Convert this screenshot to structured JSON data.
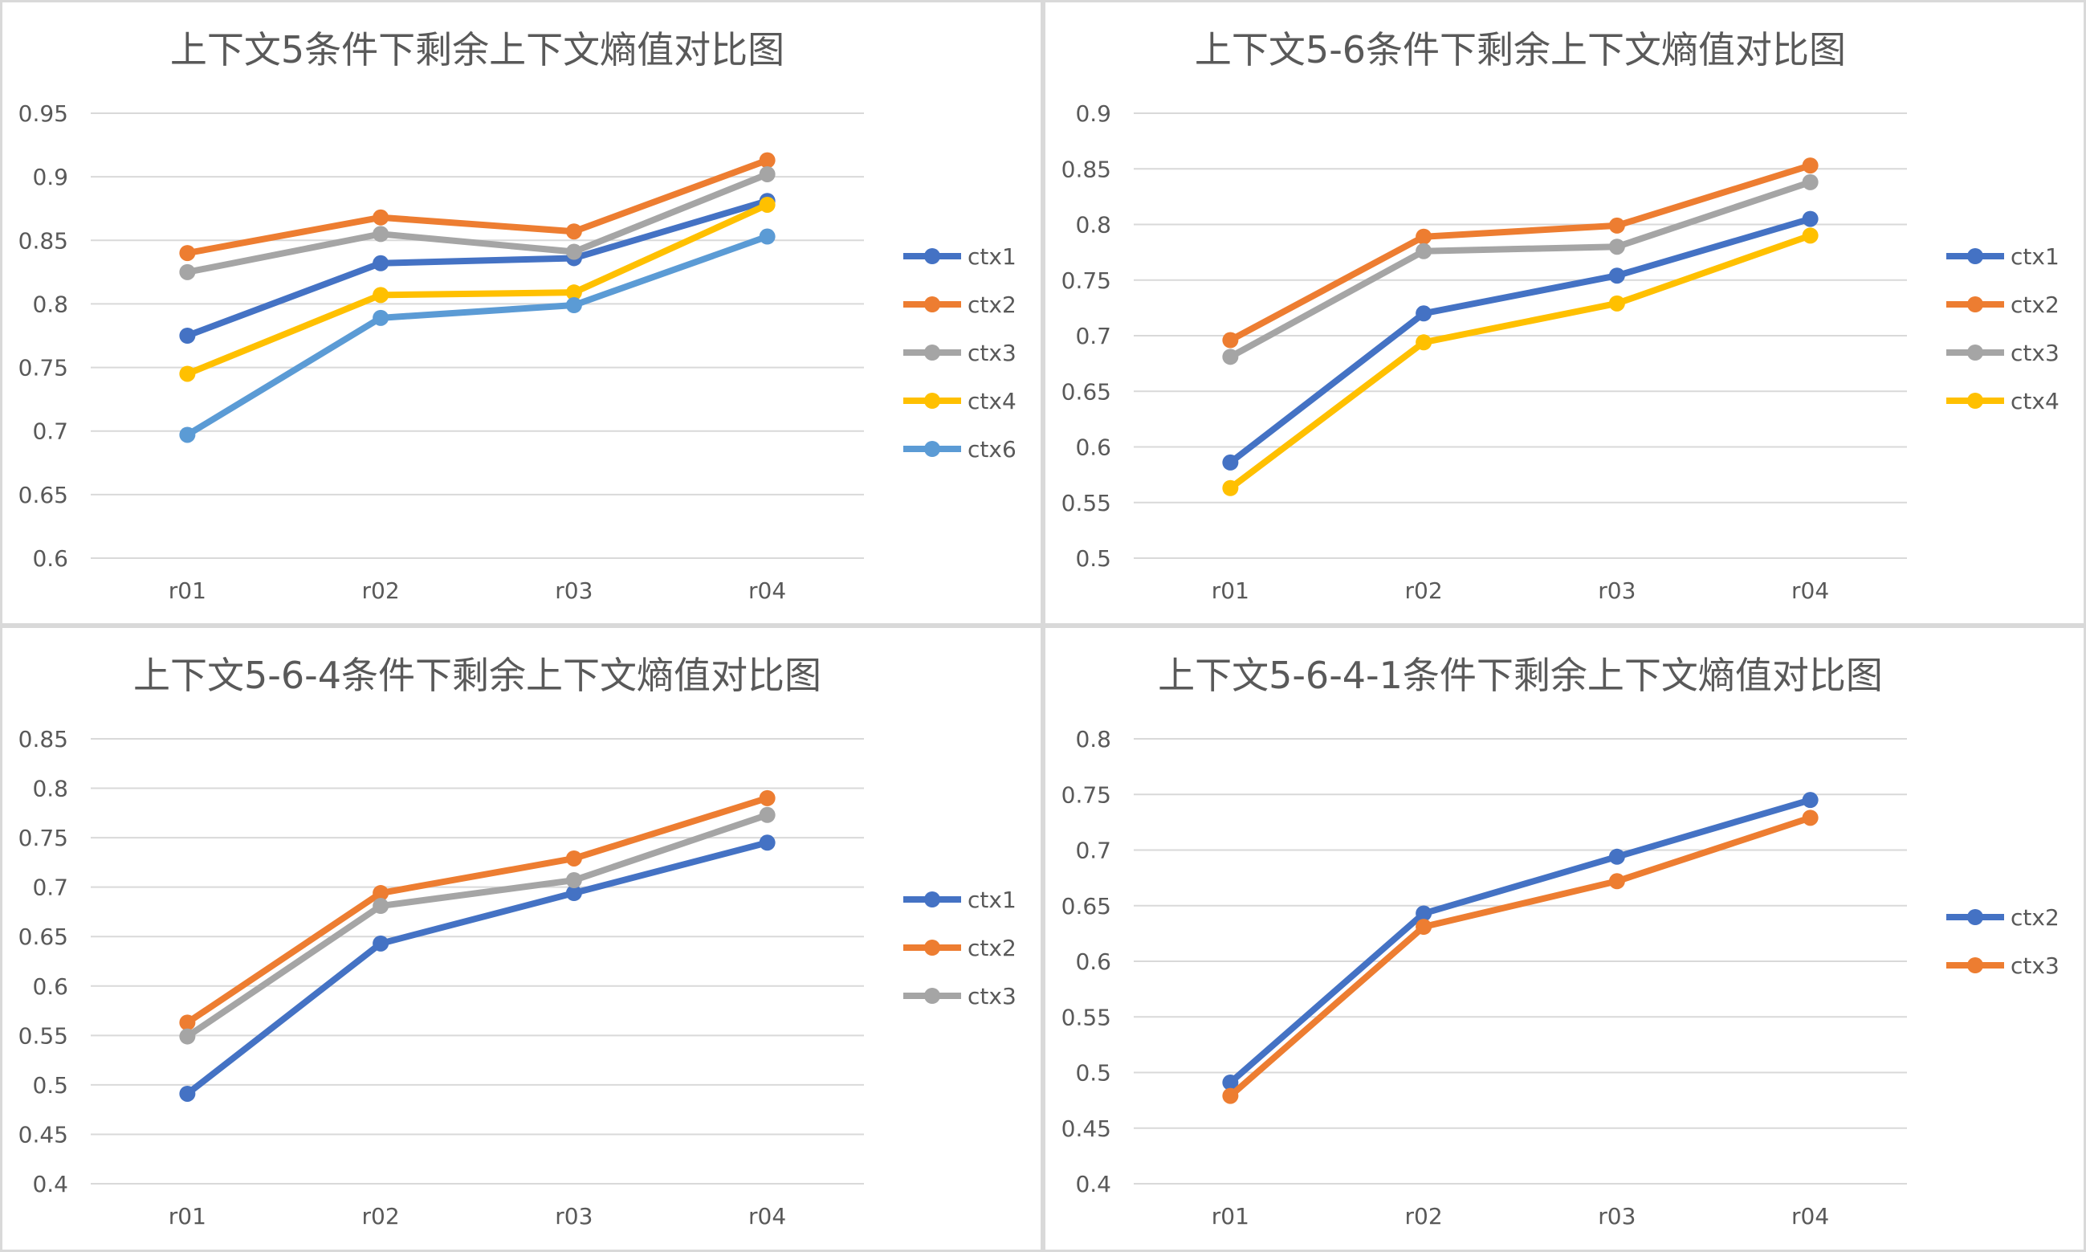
{
  "chart_data": [
    {
      "type": "line",
      "title": "上下文5条件下剩余上下文熵值对比图",
      "categories": [
        "r01",
        "r02",
        "r03",
        "r04"
      ],
      "ylim": [
        0.6,
        0.95
      ],
      "yticks": [
        "0.6",
        "0.65",
        "0.7",
        "0.75",
        "0.8",
        "0.85",
        "0.9",
        "0.95"
      ],
      "grid": true,
      "legend": "right",
      "series": [
        {
          "name": "ctx1",
          "color": "#4472C4",
          "values": [
            0.775,
            0.832,
            0.836,
            0.881
          ]
        },
        {
          "name": "ctx2",
          "color": "#ED7D31",
          "values": [
            0.84,
            0.868,
            0.857,
            0.913
          ]
        },
        {
          "name": "ctx3",
          "color": "#A5A5A5",
          "values": [
            0.825,
            0.855,
            0.841,
            0.902
          ]
        },
        {
          "name": "ctx4",
          "color": "#FFC000",
          "values": [
            0.745,
            0.807,
            0.809,
            0.878
          ]
        },
        {
          "name": "ctx6",
          "color": "#5B9BD5",
          "values": [
            0.697,
            0.789,
            0.799,
            0.853
          ]
        }
      ]
    },
    {
      "type": "line",
      "title": "上下文5-6条件下剩余上下文熵值对比图",
      "categories": [
        "r01",
        "r02",
        "r03",
        "r04"
      ],
      "ylim": [
        0.5,
        0.9
      ],
      "yticks": [
        "0.5",
        "0.55",
        "0.6",
        "0.65",
        "0.7",
        "0.75",
        "0.8",
        "0.85",
        "0.9"
      ],
      "grid": true,
      "legend": "right",
      "series": [
        {
          "name": "ctx1",
          "color": "#4472C4",
          "values": [
            0.586,
            0.72,
            0.754,
            0.805
          ]
        },
        {
          "name": "ctx2",
          "color": "#ED7D31",
          "values": [
            0.696,
            0.789,
            0.799,
            0.853
          ]
        },
        {
          "name": "ctx3",
          "color": "#A5A5A5",
          "values": [
            0.681,
            0.776,
            0.78,
            0.838
          ]
        },
        {
          "name": "ctx4",
          "color": "#FFC000",
          "values": [
            0.563,
            0.694,
            0.729,
            0.79
          ]
        }
      ]
    },
    {
      "type": "line",
      "title": "上下文5-6-4条件下剩余上下文熵值对比图",
      "categories": [
        "r01",
        "r02",
        "r03",
        "r04"
      ],
      "ylim": [
        0.4,
        0.85
      ],
      "yticks": [
        "0.4",
        "0.45",
        "0.5",
        "0.55",
        "0.6",
        "0.65",
        "0.7",
        "0.75",
        "0.8",
        "0.85"
      ],
      "grid": true,
      "legend": "right",
      "series": [
        {
          "name": "ctx1",
          "color": "#4472C4",
          "values": [
            0.491,
            0.643,
            0.694,
            0.745
          ]
        },
        {
          "name": "ctx2",
          "color": "#ED7D31",
          "values": [
            0.563,
            0.694,
            0.729,
            0.79
          ]
        },
        {
          "name": "ctx3",
          "color": "#A5A5A5",
          "values": [
            0.549,
            0.681,
            0.707,
            0.773
          ]
        }
      ]
    },
    {
      "type": "line",
      "title": "上下文5-6-4-1条件下剩余上下文熵值对比图",
      "categories": [
        "r01",
        "r02",
        "r03",
        "r04"
      ],
      "ylim": [
        0.4,
        0.8
      ],
      "yticks": [
        "0.4",
        "0.45",
        "0.5",
        "0.55",
        "0.6",
        "0.65",
        "0.7",
        "0.75",
        "0.8"
      ],
      "grid": true,
      "legend": "right",
      "series": [
        {
          "name": "ctx2",
          "color": "#4472C4",
          "values": [
            0.491,
            0.643,
            0.694,
            0.745
          ]
        },
        {
          "name": "ctx3",
          "color": "#ED7D31",
          "values": [
            0.479,
            0.631,
            0.672,
            0.729
          ]
        }
      ]
    }
  ]
}
